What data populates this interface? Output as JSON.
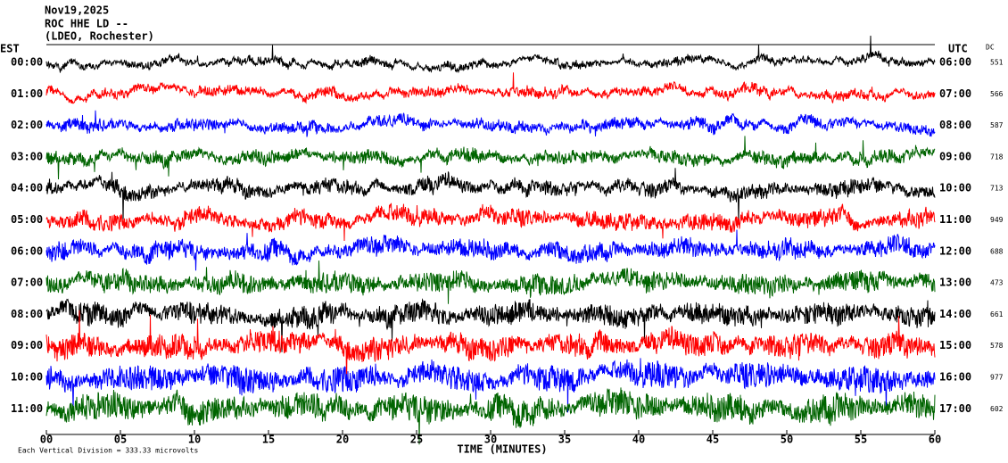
{
  "header": {
    "lines": [
      "Nov19,2025",
      "ROC HHE LD --",
      "(LDEO, Rochester)"
    ],
    "left_zone": "EST",
    "right_zone": "UTC",
    "dc_label": "DC"
  },
  "rows": [
    {
      "est": "00:00",
      "utc": "06:00",
      "dc": "551",
      "color": "#000000"
    },
    {
      "est": "01:00",
      "utc": "07:00",
      "dc": "566",
      "color": "#ff0000"
    },
    {
      "est": "02:00",
      "utc": "08:00",
      "dc": "587",
      "color": "#0000ff"
    },
    {
      "est": "03:00",
      "utc": "09:00",
      "dc": "718",
      "color": "#006400"
    },
    {
      "est": "04:00",
      "utc": "10:00",
      "dc": "713",
      "color": "#000000"
    },
    {
      "est": "05:00",
      "utc": "11:00",
      "dc": "949",
      "color": "#ff0000"
    },
    {
      "est": "06:00",
      "utc": "12:00",
      "dc": "688",
      "color": "#0000ff"
    },
    {
      "est": "07:00",
      "utc": "13:00",
      "dc": "473",
      "color": "#006400"
    },
    {
      "est": "08:00",
      "utc": "14:00",
      "dc": "661",
      "color": "#000000"
    },
    {
      "est": "09:00",
      "utc": "15:00",
      "dc": "578",
      "color": "#ff0000"
    },
    {
      "est": "10:00",
      "utc": "16:00",
      "dc": "977",
      "color": "#0000ff"
    },
    {
      "est": "11:00",
      "utc": "17:00",
      "dc": "602",
      "color": "#006400"
    }
  ],
  "x_axis": {
    "label": "TIME (MINUTES)",
    "lim": [
      0,
      60
    ],
    "ticks": [
      {
        "value": 0,
        "label": "00"
      },
      {
        "value": 5,
        "label": "05"
      },
      10,
      15,
      20,
      25,
      30,
      35,
      40,
      45,
      50,
      55,
      60
    ]
  },
  "footer": "Each Vertical Division =  333.33 microvolts"
}
